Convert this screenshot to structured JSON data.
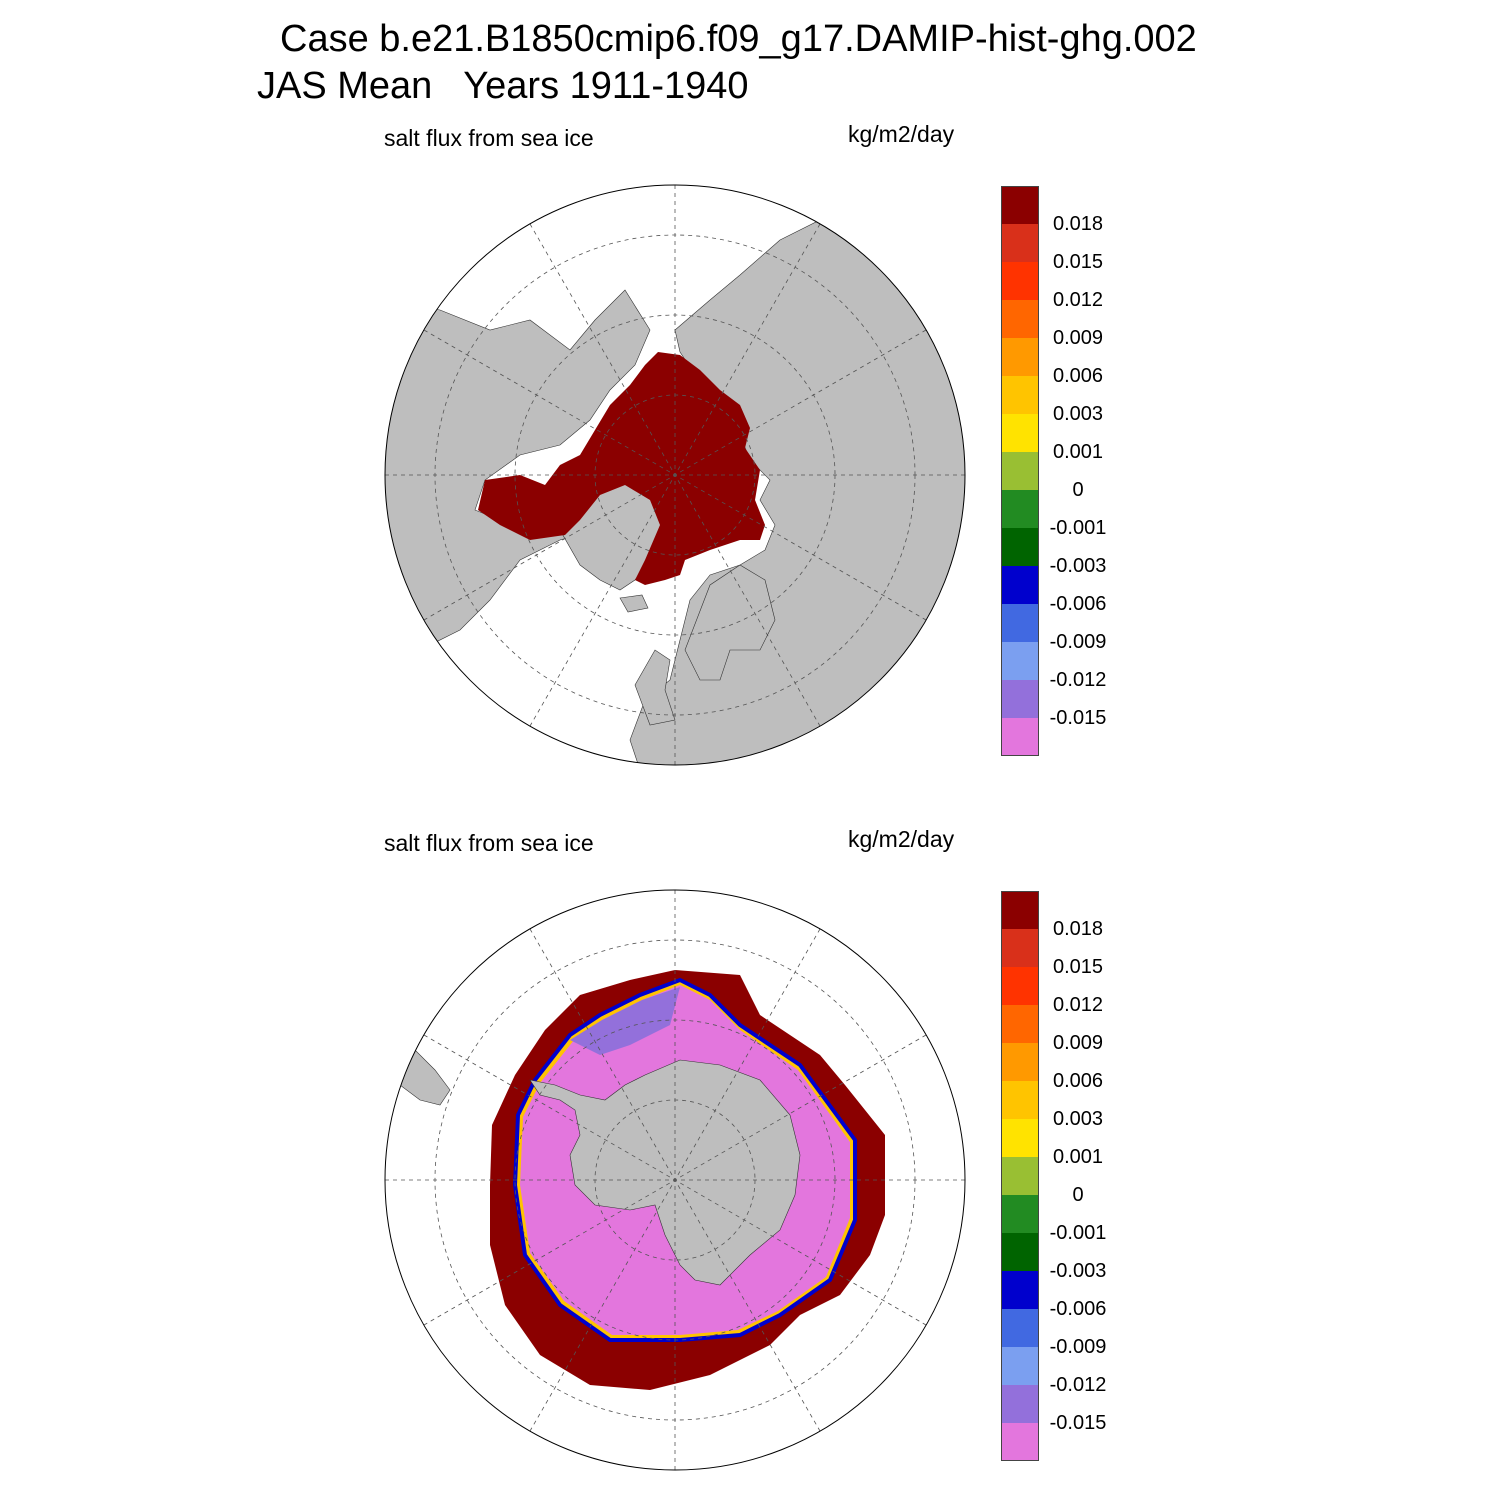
{
  "figure": {
    "title_line1": "Case b.e21.B1850cmip6.f09_g17.DAMIP-hist-ghg.002",
    "title_line2": "JAS Mean   Years 1911-1940"
  },
  "panels": [
    {
      "hemisphere": "north",
      "title": "salt flux from sea ice",
      "units": "kg/m2/day"
    },
    {
      "hemisphere": "south",
      "title": "salt flux from sea ice",
      "units": "kg/m2/day"
    }
  ],
  "colorbar": {
    "levels": [
      "0.018",
      "0.015",
      "0.012",
      "0.009",
      "0.006",
      "0.003",
      "0.001",
      "0",
      "-0.001",
      "-0.003",
      "-0.006",
      "-0.009",
      "-0.012",
      "-0.015"
    ],
    "colors": [
      "#8b0000",
      "#d9301a",
      "#ff3300",
      "#ff6600",
      "#ff9900",
      "#ffc400",
      "#ffe300",
      "#99bf33",
      "#228b22",
      "#006400",
      "#0000cd",
      "#4169e1",
      "#7b9ff0",
      "#9370db",
      "#e376dd"
    ]
  },
  "map_colors": {
    "land": "#bebebe",
    "ocean": "#ffffff",
    "grid": "#555555"
  }
}
